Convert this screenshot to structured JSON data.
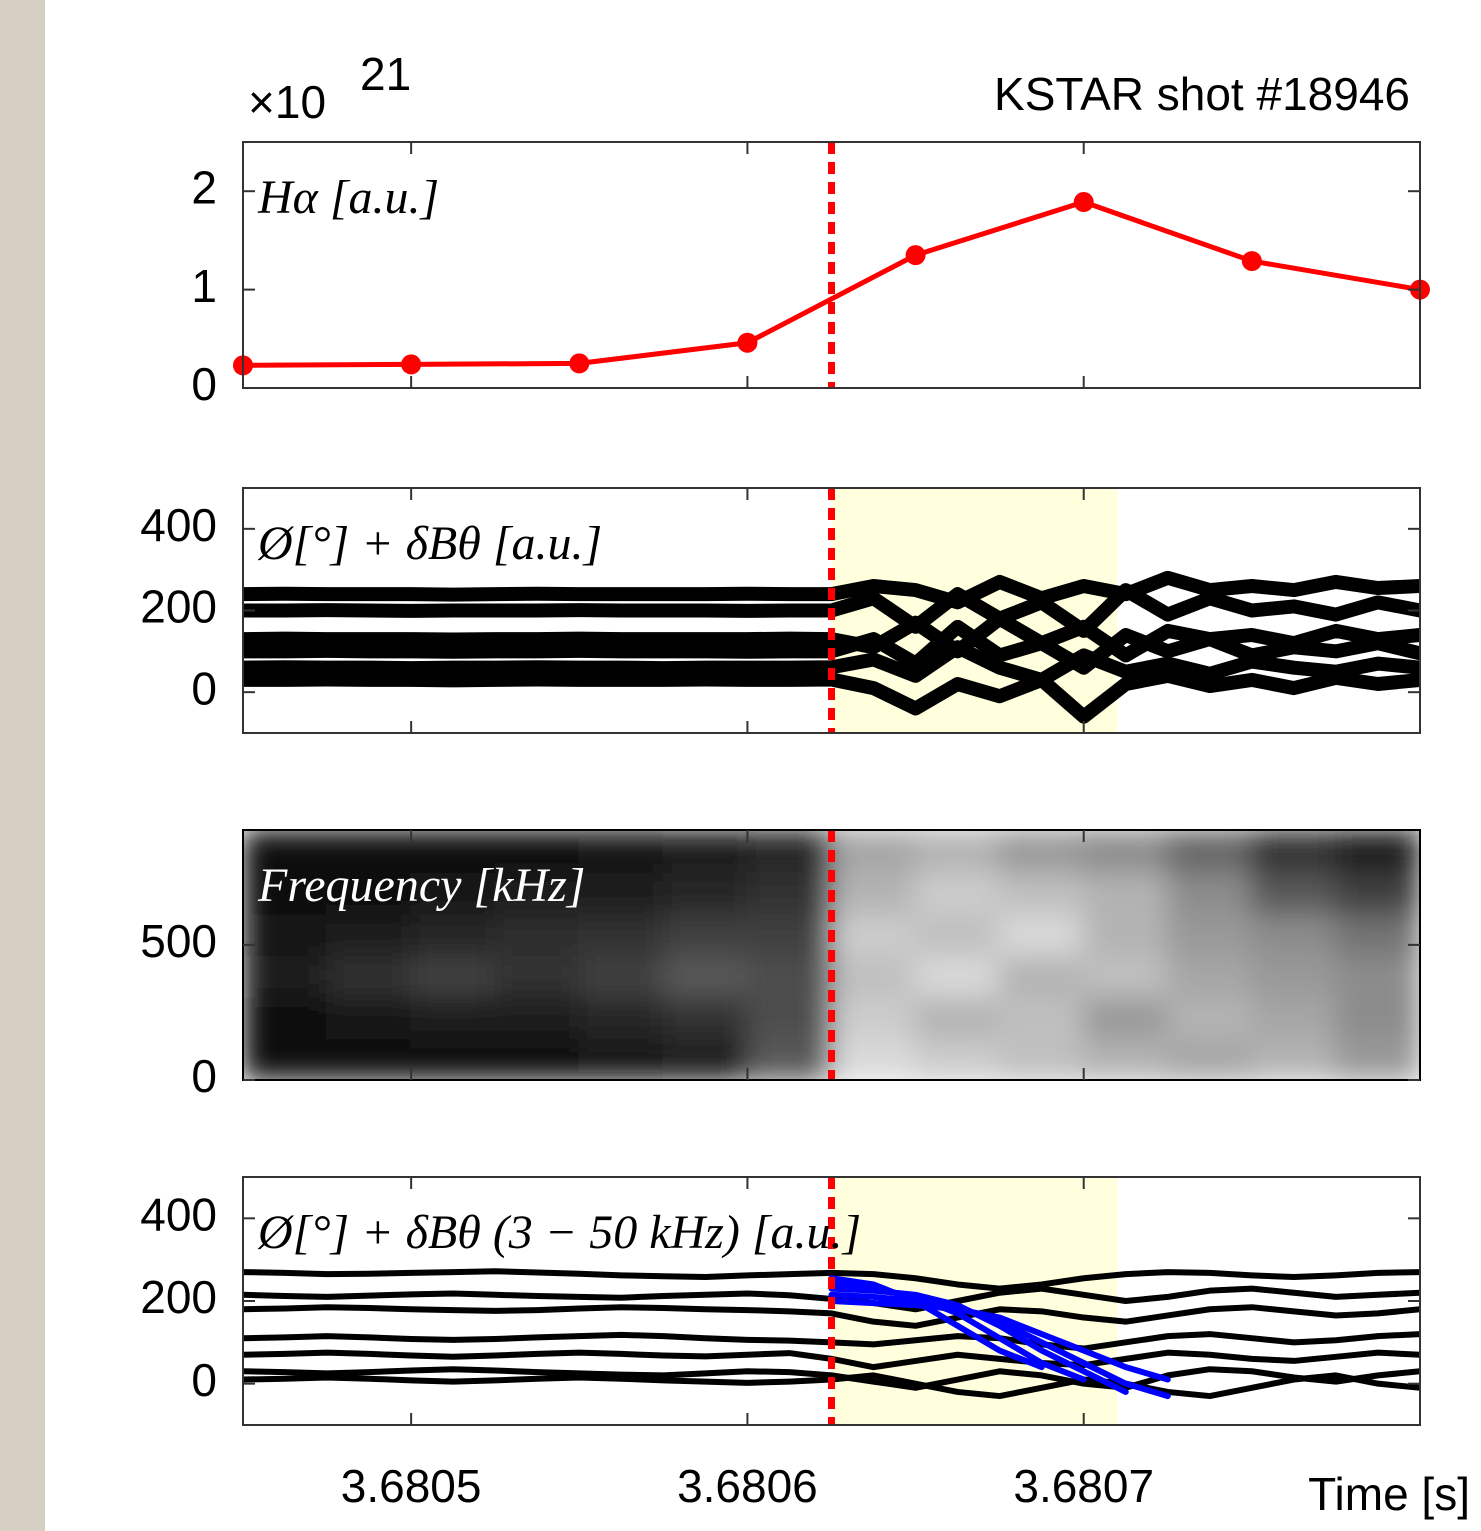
{
  "annotation": "KSTAR shot #18946",
  "x_axis": {
    "label": "Time [s]",
    "xlim": [
      3.68045,
      3.6808
    ],
    "xticks": [
      3.6805,
      3.6806,
      3.6807
    ]
  },
  "chart_data": [
    {
      "type": "line",
      "label": "Hα [a.u.]",
      "exponent_base": "×10",
      "exponent": "21",
      "ylim": [
        0,
        2.5
      ],
      "yticks": [
        0,
        1,
        2
      ],
      "vline": 3.680625,
      "markers": true,
      "x": [
        3.68045,
        3.6805,
        3.68055,
        3.6806,
        3.68065,
        3.6807,
        3.68075,
        3.6808
      ],
      "series": [
        {
          "color": "#ff0000",
          "values": [
            0.23,
            0.24,
            0.25,
            0.46,
            1.35,
            1.89,
            1.29,
            1.0
          ]
        }
      ]
    },
    {
      "type": "line",
      "label": "Ø[°] + δBθ [a.u.]",
      "ylim": [
        -100,
        500
      ],
      "yticks": [
        0,
        200,
        400
      ],
      "vline": 3.680625,
      "span": [
        3.680625,
        3.68071
      ],
      "line_width": 14,
      "x": [
        3.68045,
        3.6804625,
        3.680475,
        3.6804875,
        3.6805,
        3.6805125,
        3.680525,
        3.6805375,
        3.68055,
        3.6805625,
        3.680575,
        3.6805875,
        3.6806,
        3.6806125,
        3.680625,
        3.6806375,
        3.68065,
        3.6806625,
        3.680675,
        3.6806875,
        3.6807,
        3.6807125,
        3.680725,
        3.6807375,
        3.68075,
        3.6807625,
        3.680775,
        3.6807875,
        3.6808
      ],
      "series": [
        {
          "color": "#000000",
          "values": [
            30,
            30,
            31,
            30,
            30,
            29,
            30,
            31,
            30,
            30,
            30,
            31,
            30,
            30,
            31,
            10,
            -40,
            20,
            -10,
            30,
            -60,
            20,
            40,
            15,
            30,
            10,
            35,
            20,
            30
          ]
        },
        {
          "color": "#000000",
          "values": [
            60,
            61,
            60,
            60,
            59,
            60,
            60,
            61,
            60,
            60,
            59,
            60,
            60,
            60,
            61,
            80,
            40,
            110,
            60,
            30,
            90,
            50,
            70,
            45,
            75,
            60,
            50,
            70,
            60
          ]
        },
        {
          "color": "#000000",
          "values": [
            100,
            100,
            101,
            100,
            100,
            99,
            100,
            100,
            101,
            100,
            100,
            100,
            99,
            100,
            100,
            130,
            70,
            160,
            90,
            120,
            60,
            140,
            100,
            130,
            90,
            110,
            100,
            120,
            95
          ]
        },
        {
          "color": "#000000",
          "values": [
            130,
            131,
            130,
            130,
            130,
            129,
            130,
            130,
            131,
            130,
            130,
            130,
            130,
            131,
            130,
            110,
            170,
            100,
            180,
            120,
            160,
            90,
            150,
            130,
            140,
            120,
            150,
            130,
            140
          ]
        },
        {
          "color": "#000000",
          "values": [
            200,
            200,
            201,
            200,
            199,
            200,
            200,
            200,
            201,
            200,
            200,
            200,
            199,
            200,
            200,
            230,
            160,
            240,
            180,
            220,
            150,
            250,
            190,
            230,
            200,
            210,
            190,
            220,
            200
          ]
        },
        {
          "color": "#000000",
          "values": [
            240,
            241,
            240,
            240,
            240,
            239,
            240,
            241,
            240,
            240,
            240,
            240,
            241,
            240,
            240,
            260,
            250,
            220,
            270,
            230,
            260,
            240,
            280,
            250,
            260,
            250,
            270,
            255,
            260
          ]
        }
      ]
    },
    {
      "type": "heatmap",
      "label": "Frequency [kHz]",
      "ylim": [
        0,
        925
      ],
      "yticks": [
        0,
        500
      ],
      "vline": 3.680625,
      "z": [
        [
          0.05,
          0.05,
          0.06,
          0.05,
          0.08,
          0.1,
          0.35,
          0.85,
          0.8,
          0.75,
          0.7,
          0.65,
          0.7,
          0.6
        ],
        [
          0.06,
          0.08,
          0.1,
          0.12,
          0.15,
          0.2,
          0.3,
          0.8,
          0.7,
          0.75,
          0.6,
          0.7,
          0.65,
          0.55
        ],
        [
          0.1,
          0.2,
          0.25,
          0.2,
          0.25,
          0.35,
          0.3,
          0.75,
          0.85,
          0.7,
          0.75,
          0.65,
          0.6,
          0.55
        ],
        [
          0.08,
          0.12,
          0.15,
          0.18,
          0.2,
          0.25,
          0.25,
          0.8,
          0.75,
          0.85,
          0.7,
          0.6,
          0.55,
          0.45
        ],
        [
          0.05,
          0.06,
          0.08,
          0.1,
          0.1,
          0.15,
          0.2,
          0.7,
          0.8,
          0.75,
          0.7,
          0.55,
          0.35,
          0.25
        ],
        [
          0.04,
          0.05,
          0.05,
          0.06,
          0.08,
          0.1,
          0.15,
          0.65,
          0.7,
          0.6,
          0.55,
          0.4,
          0.2,
          0.1
        ]
      ]
    },
    {
      "type": "line",
      "label": "Ø[°] + δBθ (3 − 50 kHz) [a.u.]",
      "ylim": [
        -100,
        500
      ],
      "yticks": [
        0,
        200,
        400
      ],
      "vline": 3.680625,
      "span": [
        3.680625,
        3.68071
      ],
      "line_width": 6,
      "x": [
        3.68045,
        3.6804625,
        3.680475,
        3.6804875,
        3.6805,
        3.6805125,
        3.680525,
        3.6805375,
        3.68055,
        3.6805625,
        3.680575,
        3.6805875,
        3.6806,
        3.6806125,
        3.680625,
        3.6806375,
        3.68065,
        3.6806625,
        3.680675,
        3.6806875,
        3.6807,
        3.6807125,
        3.680725,
        3.6807375,
        3.68075,
        3.6807625,
        3.680775,
        3.6807875,
        3.6808
      ],
      "series": [
        {
          "color": "#000000",
          "values": [
            270,
            268,
            265,
            266,
            268,
            270,
            272,
            269,
            266,
            262,
            260,
            258,
            262,
            265,
            268,
            265,
            255,
            240,
            230,
            240,
            255,
            265,
            270,
            268,
            262,
            258,
            262,
            268,
            270
          ]
        },
        {
          "color": "#000000",
          "values": [
            215,
            212,
            210,
            213,
            216,
            218,
            215,
            212,
            210,
            208,
            212,
            215,
            218,
            214,
            205,
            195,
            180,
            200,
            220,
            230,
            215,
            200,
            210,
            225,
            230,
            220,
            210,
            215,
            220
          ]
        },
        {
          "color": "#000000",
          "values": [
            180,
            182,
            185,
            183,
            180,
            178,
            176,
            178,
            182,
            185,
            183,
            180,
            178,
            175,
            170,
            150,
            140,
            160,
            180,
            175,
            160,
            150,
            165,
            180,
            185,
            175,
            165,
            170,
            180
          ]
        },
        {
          "color": "#000000",
          "values": [
            110,
            112,
            115,
            112,
            108,
            106,
            108,
            112,
            115,
            118,
            115,
            110,
            106,
            104,
            100,
            95,
            105,
            115,
            110,
            95,
            85,
            100,
            115,
            120,
            110,
            100,
            105,
            115,
            120
          ]
        },
        {
          "color": "#000000",
          "values": [
            70,
            72,
            75,
            72,
            68,
            65,
            68,
            72,
            75,
            72,
            68,
            66,
            70,
            74,
            60,
            40,
            55,
            70,
            60,
            50,
            45,
            60,
            75,
            70,
            60,
            55,
            65,
            75,
            70
          ]
        },
        {
          "color": "#000000",
          "values": [
            30,
            28,
            25,
            28,
            32,
            35,
            32,
            28,
            25,
            22,
            20,
            25,
            30,
            28,
            20,
            5,
            -10,
            10,
            30,
            20,
            0,
            -10,
            20,
            35,
            30,
            15,
            5,
            20,
            30
          ]
        },
        {
          "color": "#000000",
          "values": [
            10,
            12,
            15,
            12,
            8,
            5,
            8,
            12,
            15,
            12,
            8,
            5,
            2,
            5,
            10,
            20,
            0,
            -20,
            -30,
            -10,
            10,
            0,
            -20,
            -30,
            -10,
            10,
            20,
            0,
            -10
          ]
        },
        {
          "color": "#0000ff",
          "values": [
            null,
            null,
            null,
            null,
            null,
            null,
            null,
            null,
            null,
            null,
            null,
            null,
            null,
            null,
            255,
            240,
            200,
            140,
            80,
            40,
            null,
            null,
            null,
            null,
            null,
            null,
            null,
            null,
            null
          ]
        },
        {
          "color": "#0000ff",
          "values": [
            null,
            null,
            null,
            null,
            null,
            null,
            null,
            null,
            null,
            null,
            null,
            null,
            null,
            null,
            240,
            230,
            210,
            170,
            110,
            50,
            10,
            null,
            null,
            null,
            null,
            null,
            null,
            null,
            null
          ]
        },
        {
          "color": "#0000ff",
          "values": [
            null,
            null,
            null,
            null,
            null,
            null,
            null,
            null,
            null,
            null,
            null,
            null,
            null,
            null,
            230,
            225,
            215,
            190,
            140,
            80,
            30,
            -20,
            null,
            null,
            null,
            null,
            null,
            null,
            null
          ]
        },
        {
          "color": "#0000ff",
          "values": [
            null,
            null,
            null,
            null,
            null,
            null,
            null,
            null,
            null,
            null,
            null,
            null,
            null,
            null,
            215,
            210,
            200,
            185,
            150,
            100,
            50,
            0,
            -30,
            null,
            null,
            null,
            null,
            null,
            null
          ]
        },
        {
          "color": "#0000ff",
          "values": [
            null,
            null,
            null,
            null,
            null,
            null,
            null,
            null,
            null,
            null,
            null,
            null,
            null,
            null,
            200,
            195,
            190,
            180,
            160,
            120,
            80,
            40,
            10,
            null,
            null,
            null,
            null,
            null,
            null
          ]
        }
      ]
    }
  ]
}
